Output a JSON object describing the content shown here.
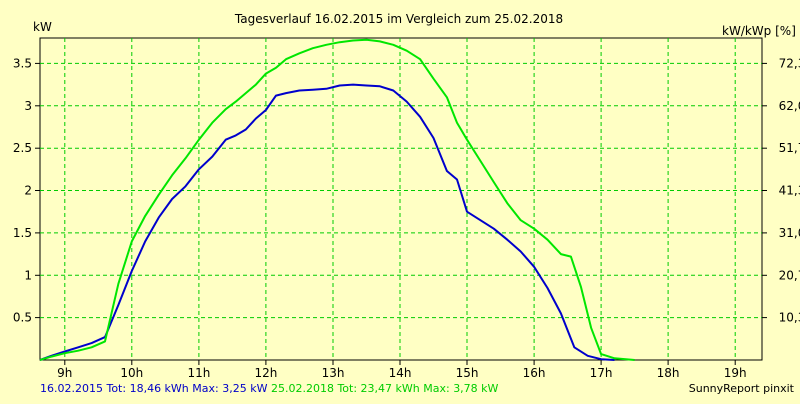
{
  "chart_data": {
    "type": "line",
    "title": "Tagesverlauf 16.02.2015 im Vergleich zum 25.02.2018",
    "ylabel": "kW",
    "ylabel_right": "kW/kWp [%]",
    "xlim": [
      8.63,
      19.4
    ],
    "ylim": [
      0,
      3.8
    ],
    "grid": true,
    "x_ticks": [
      9,
      10,
      11,
      12,
      13,
      14,
      15,
      16,
      17,
      18,
      19
    ],
    "x_tick_labels": [
      "9h",
      "10h",
      "11h",
      "12h",
      "13h",
      "14h",
      "15h",
      "16h",
      "17h",
      "18h",
      "19h"
    ],
    "y_ticks": [
      0.5,
      1,
      1.5,
      2,
      2.5,
      3,
      3.5
    ],
    "y_tick_labels": [
      "0.5",
      "1",
      "1.5",
      "2",
      "2.5",
      "3",
      "3.5"
    ],
    "y2_tick_labels": [
      "10,3",
      "20,7",
      "31,0",
      "41,3",
      "51,7",
      "62,0",
      "72,3"
    ],
    "series": [
      {
        "name": "16.02.2015",
        "color": "#0000cc",
        "points": [
          [
            8.63,
            0.0
          ],
          [
            8.8,
            0.05
          ],
          [
            9.0,
            0.1
          ],
          [
            9.2,
            0.15
          ],
          [
            9.4,
            0.2
          ],
          [
            9.6,
            0.27
          ],
          [
            9.8,
            0.65
          ],
          [
            10.0,
            1.05
          ],
          [
            10.2,
            1.4
          ],
          [
            10.4,
            1.68
          ],
          [
            10.6,
            1.9
          ],
          [
            10.8,
            2.05
          ],
          [
            11.0,
            2.25
          ],
          [
            11.2,
            2.4
          ],
          [
            11.4,
            2.6
          ],
          [
            11.55,
            2.65
          ],
          [
            11.7,
            2.72
          ],
          [
            11.85,
            2.85
          ],
          [
            12.0,
            2.95
          ],
          [
            12.15,
            3.12
          ],
          [
            12.3,
            3.15
          ],
          [
            12.5,
            3.18
          ],
          [
            12.7,
            3.19
          ],
          [
            12.9,
            3.2
          ],
          [
            13.1,
            3.24
          ],
          [
            13.3,
            3.25
          ],
          [
            13.5,
            3.24
          ],
          [
            13.7,
            3.23
          ],
          [
            13.9,
            3.18
          ],
          [
            14.1,
            3.05
          ],
          [
            14.3,
            2.87
          ],
          [
            14.5,
            2.62
          ],
          [
            14.7,
            2.23
          ],
          [
            14.85,
            2.13
          ],
          [
            15.0,
            1.75
          ],
          [
            15.2,
            1.65
          ],
          [
            15.4,
            1.55
          ],
          [
            15.6,
            1.42
          ],
          [
            15.8,
            1.28
          ],
          [
            16.0,
            1.1
          ],
          [
            16.2,
            0.85
          ],
          [
            16.4,
            0.55
          ],
          [
            16.6,
            0.15
          ],
          [
            16.8,
            0.05
          ],
          [
            17.0,
            0.01
          ],
          [
            17.2,
            0.0
          ]
        ]
      },
      {
        "name": "25.02.2018",
        "color": "#00e600",
        "points": [
          [
            8.63,
            0.0
          ],
          [
            8.8,
            0.04
          ],
          [
            9.0,
            0.08
          ],
          [
            9.2,
            0.11
          ],
          [
            9.4,
            0.15
          ],
          [
            9.6,
            0.22
          ],
          [
            9.8,
            0.9
          ],
          [
            10.0,
            1.4
          ],
          [
            10.2,
            1.7
          ],
          [
            10.4,
            1.95
          ],
          [
            10.6,
            2.18
          ],
          [
            10.8,
            2.38
          ],
          [
            11.0,
            2.6
          ],
          [
            11.2,
            2.8
          ],
          [
            11.4,
            2.96
          ],
          [
            11.55,
            3.05
          ],
          [
            11.7,
            3.15
          ],
          [
            11.85,
            3.25
          ],
          [
            12.0,
            3.38
          ],
          [
            12.15,
            3.45
          ],
          [
            12.3,
            3.55
          ],
          [
            12.5,
            3.62
          ],
          [
            12.7,
            3.68
          ],
          [
            12.9,
            3.72
          ],
          [
            13.1,
            3.75
          ],
          [
            13.3,
            3.77
          ],
          [
            13.5,
            3.78
          ],
          [
            13.7,
            3.76
          ],
          [
            13.9,
            3.72
          ],
          [
            14.1,
            3.65
          ],
          [
            14.3,
            3.55
          ],
          [
            14.5,
            3.32
          ],
          [
            14.7,
            3.1
          ],
          [
            14.85,
            2.8
          ],
          [
            15.0,
            2.6
          ],
          [
            15.2,
            2.35
          ],
          [
            15.4,
            2.1
          ],
          [
            15.6,
            1.85
          ],
          [
            15.8,
            1.65
          ],
          [
            16.0,
            1.55
          ],
          [
            16.2,
            1.42
          ],
          [
            16.4,
            1.25
          ],
          [
            16.55,
            1.22
          ],
          [
            16.7,
            0.86
          ],
          [
            16.85,
            0.38
          ],
          [
            17.0,
            0.07
          ],
          [
            17.2,
            0.02
          ],
          [
            17.5,
            0.0
          ]
        ]
      }
    ]
  },
  "footer": {
    "series1_stats": "16.02.2015 Tot: 18,46 kWh Max: 3,25 kW",
    "series2_stats": "25.02.2018 Tot: 23,47 kWh Max: 3,78 kW",
    "credit": "SunnyReport pinxit"
  },
  "colors": {
    "background": "#ffffc4",
    "grid": "#00cc00",
    "axis": "#000000"
  }
}
